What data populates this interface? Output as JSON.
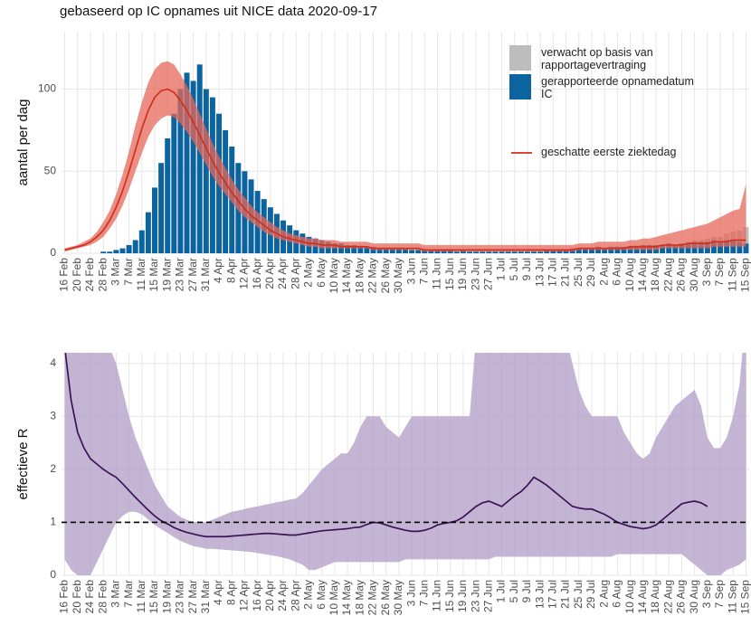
{
  "chart_data": [
    {
      "type": "bar",
      "title": "gebaseerd op IC opnames uit NICE data 2020-09-17",
      "y_label": "aantal per dag",
      "categories": [
        "16 Feb",
        null,
        "20 Feb",
        null,
        "24 Feb",
        null,
        "28 Feb",
        null,
        "3 Mar",
        null,
        "7 Mar",
        null,
        "11 Mar",
        null,
        "15 Mar",
        null,
        "19 Mar",
        null,
        "23 Mar",
        null,
        "27 Mar",
        null,
        "31 Mar",
        null,
        "4 Apr",
        null,
        "8 Apr",
        null,
        "12 Apr",
        null,
        "16 Apr",
        null,
        "20 Apr",
        null,
        "24 Apr",
        null,
        "28 Apr",
        null,
        "2 May",
        null,
        "6 May",
        null,
        "10 May",
        null,
        "14 May",
        null,
        "18 May",
        null,
        "22 May",
        null,
        "26 May",
        null,
        "30 May",
        null,
        "3 Jun",
        null,
        "7 Jun",
        null,
        "11 Jun",
        null,
        "15 Jun",
        null,
        "19 Jun",
        null,
        "23 Jun",
        null,
        "27 Jun",
        null,
        "1 Jul",
        null,
        "5 Jul",
        null,
        "9 Jul",
        null,
        "13 Jul",
        null,
        "17 Jul",
        null,
        "21 Jul",
        null,
        "25 Jul",
        null,
        "29 Jul",
        null,
        "2 Aug",
        null,
        "6 Aug",
        null,
        "10 Aug",
        null,
        "14 Aug",
        null,
        "18 Aug",
        null,
        "22 Aug",
        null,
        "26 Aug",
        null,
        "30 Aug",
        null,
        "3 Sep",
        null,
        "7 Sep",
        null,
        "11 Sep",
        null,
        "15 Sep"
      ],
      "ylim": [
        0,
        135
      ],
      "yticks": [
        0,
        50,
        100
      ],
      "grid": true,
      "series": [
        {
          "name": "verwacht op basis van rapportagevertraging",
          "color": "#bdbdbd",
          "values": [
            0,
            0,
            0,
            0,
            0,
            0,
            0,
            0,
            0,
            0,
            0,
            0,
            0,
            0,
            0,
            0,
            0,
            0,
            0,
            0,
            0,
            0,
            0,
            0,
            0,
            0,
            0,
            0,
            0,
            0,
            0,
            0,
            0,
            0,
            0,
            0,
            0,
            0,
            0,
            0,
            0,
            0,
            0,
            0,
            0,
            0,
            0,
            0,
            0,
            0,
            0,
            0,
            0,
            0,
            0,
            0,
            0,
            0,
            0,
            0,
            0,
            0,
            0,
            0,
            0,
            0,
            0,
            0,
            0,
            0,
            0,
            0,
            0,
            0,
            0,
            0,
            0,
            0,
            0,
            0,
            0,
            0,
            0,
            0,
            0,
            0,
            0,
            0,
            0,
            0,
            0,
            0,
            0,
            0,
            0,
            0,
            0,
            1,
            1,
            1,
            2,
            2,
            3,
            4,
            5,
            7,
            10
          ]
        },
        {
          "name": "gerapporteerde opnamedatum IC",
          "color": "#0b64a0",
          "values": [
            0,
            0,
            0,
            0,
            0,
            0,
            1,
            1,
            2,
            3,
            5,
            8,
            14,
            25,
            40,
            55,
            70,
            85,
            100,
            110,
            105,
            115,
            100,
            95,
            85,
            75,
            65,
            55,
            50,
            45,
            38,
            33,
            28,
            24,
            20,
            17,
            14,
            12,
            10,
            9,
            8,
            7,
            6,
            6,
            5,
            5,
            4,
            4,
            4,
            3,
            3,
            3,
            3,
            3,
            2,
            2,
            2,
            2,
            2,
            2,
            2,
            1,
            2,
            1,
            1,
            1,
            1,
            1,
            1,
            1,
            1,
            1,
            1,
            1,
            1,
            2,
            2,
            2,
            2,
            3,
            3,
            3,
            3,
            4,
            3,
            4,
            4,
            4,
            4,
            4,
            5,
            5,
            5,
            5,
            6,
            5,
            6,
            6,
            7,
            7,
            7,
            8,
            7,
            8,
            8,
            7,
            6
          ]
        },
        {
          "name": "geschatte eerste ziektedag",
          "type": "line",
          "color": "#d0301e",
          "band_color": "#e5685b",
          "values": [
            2,
            3,
            4,
            5,
            7,
            10,
            14,
            20,
            28,
            38,
            50,
            63,
            76,
            87,
            95,
            99,
            100,
            98,
            93,
            87,
            80,
            72,
            64,
            56,
            49,
            43,
            37,
            32,
            27,
            23,
            20,
            17,
            14,
            12,
            10,
            9,
            8,
            7,
            6,
            6,
            5,
            5,
            5,
            4,
            4,
            4,
            4,
            4,
            3,
            3,
            3,
            3,
            3,
            3,
            3,
            3,
            2,
            2,
            2,
            2,
            2,
            2,
            2,
            2,
            2,
            2,
            2,
            2,
            2,
            2,
            2,
            2,
            2,
            2,
            2,
            2,
            2,
            2,
            2,
            2,
            3,
            3,
            3,
            3,
            3,
            3,
            3,
            3,
            4,
            4,
            4,
            4,
            4,
            5,
            5,
            5,
            5,
            6,
            6,
            6,
            6,
            7,
            7,
            7,
            8,
            8,
            8
          ],
          "lower": [
            1,
            2,
            3,
            4,
            5,
            7,
            10,
            15,
            21,
            29,
            39,
            50,
            61,
            71,
            78,
            82,
            84,
            83,
            79,
            74,
            68,
            61,
            54,
            47,
            41,
            36,
            31,
            26,
            22,
            19,
            16,
            13,
            11,
            9,
            8,
            7,
            6,
            5,
            4,
            4,
            3,
            3,
            3,
            3,
            3,
            3,
            3,
            3,
            2,
            2,
            2,
            2,
            2,
            2,
            2,
            2,
            1,
            1,
            1,
            1,
            1,
            1,
            1,
            1,
            1,
            1,
            1,
            1,
            1,
            1,
            1,
            1,
            1,
            1,
            1,
            1,
            1,
            1,
            1,
            1,
            2,
            2,
            2,
            2,
            2,
            2,
            2,
            2,
            2,
            2,
            2,
            2,
            2,
            3,
            3,
            3,
            3,
            3,
            3,
            3,
            3,
            4,
            4,
            4,
            4,
            4,
            4
          ],
          "upper": [
            3,
            4,
            5,
            7,
            9,
            13,
            19,
            26,
            36,
            48,
            62,
            78,
            92,
            104,
            112,
            116,
            117,
            115,
            109,
            102,
            94,
            85,
            76,
            67,
            59,
            52,
            45,
            39,
            34,
            29,
            25,
            22,
            19,
            16,
            14,
            12,
            11,
            10,
            9,
            9,
            8,
            8,
            8,
            7,
            7,
            7,
            7,
            7,
            6,
            6,
            6,
            6,
            6,
            6,
            6,
            6,
            5,
            5,
            5,
            5,
            5,
            5,
            5,
            5,
            5,
            5,
            5,
            5,
            5,
            5,
            5,
            5,
            5,
            5,
            5,
            5,
            5,
            5,
            5,
            5,
            6,
            6,
            6,
            7,
            7,
            7,
            7,
            7,
            8,
            8,
            9,
            9,
            10,
            11,
            12,
            13,
            14,
            15,
            16,
            17,
            18,
            20,
            22,
            24,
            26,
            27,
            42
          ]
        }
      ]
    },
    {
      "type": "line",
      "y_label": "effectieve R",
      "categories": [
        "16 Feb",
        null,
        "20 Feb",
        null,
        "24 Feb",
        null,
        "28 Feb",
        null,
        "3 Mar",
        null,
        "7 Mar",
        null,
        "11 Mar",
        null,
        "15 Mar",
        null,
        "19 Mar",
        null,
        "23 Mar",
        null,
        "27 Mar",
        null,
        "31 Mar",
        null,
        "4 Apr",
        null,
        "8 Apr",
        null,
        "12 Apr",
        null,
        "16 Apr",
        null,
        "20 Apr",
        null,
        "24 Apr",
        null,
        "28 Apr",
        null,
        "2 May",
        null,
        "6 May",
        null,
        "10 May",
        null,
        "14 May",
        null,
        "18 May",
        null,
        "22 May",
        null,
        "26 May",
        null,
        "30 May",
        null,
        "3 Jun",
        null,
        "7 Jun",
        null,
        "11 Jun",
        null,
        "15 Jun",
        null,
        "19 Jun",
        null,
        "23 Jun",
        null,
        "27 Jun",
        null,
        "1 Jul",
        null,
        "5 Jul",
        null,
        "9 Jul",
        null,
        "13 Jul",
        null,
        "17 Jul",
        null,
        "21 Jul",
        null,
        "25 Jul",
        null,
        "29 Jul",
        null,
        "2 Aug",
        null,
        "6 Aug",
        null,
        "10 Aug",
        null,
        "14 Aug",
        null,
        "18 Aug",
        null,
        "22 Aug",
        null,
        "26 Aug",
        null,
        "30 Aug",
        null,
        "3 Sep",
        null,
        "7 Sep",
        null,
        "11 Sep",
        null,
        "15 Sep"
      ],
      "ylim": [
        0,
        4.2
      ],
      "yticks": [
        0,
        1,
        2,
        3,
        4
      ],
      "grid": true,
      "reference_line": 1,
      "series": [
        {
          "color": "#3b1357",
          "band_color": "#b29cc7",
          "values": [
            4.3,
            3.3,
            2.7,
            2.4,
            2.2,
            2.1,
            2.0,
            1.92,
            1.85,
            1.73,
            1.6,
            1.47,
            1.35,
            1.23,
            1.12,
            1.03,
            0.97,
            0.9,
            0.85,
            0.81,
            0.78,
            0.75,
            0.73,
            0.73,
            0.73,
            0.73,
            0.74,
            0.75,
            0.76,
            0.77,
            0.78,
            0.79,
            0.79,
            0.78,
            0.77,
            0.76,
            0.76,
            0.78,
            0.8,
            0.82,
            0.84,
            0.85,
            0.86,
            0.87,
            0.88,
            0.9,
            0.91,
            0.96,
            1.0,
            0.99,
            0.95,
            0.91,
            0.88,
            0.85,
            0.83,
            0.83,
            0.85,
            0.89,
            0.95,
            0.98,
            1.0,
            1.03,
            1.1,
            1.2,
            1.3,
            1.37,
            1.4,
            1.35,
            1.3,
            1.4,
            1.5,
            1.58,
            1.7,
            1.85,
            1.78,
            1.7,
            1.6,
            1.5,
            1.4,
            1.3,
            1.27,
            1.25,
            1.25,
            1.2,
            1.15,
            1.08,
            1.0,
            0.96,
            0.92,
            0.9,
            0.88,
            0.9,
            0.95,
            1.05,
            1.15,
            1.25,
            1.35,
            1.38,
            1.4,
            1.37,
            1.3,
            null,
            null,
            null,
            null,
            null,
            null
          ],
          "lower": [
            0.3,
            0.1,
            0,
            0,
            0,
            0.25,
            0.5,
            0.75,
            1.0,
            1.12,
            1.2,
            1.2,
            1.15,
            1.05,
            0.95,
            0.87,
            0.8,
            0.72,
            0.65,
            0.6,
            0.55,
            0.53,
            0.5,
            0.5,
            0.49,
            0.48,
            0.47,
            0.46,
            0.45,
            0.44,
            0.42,
            0.4,
            0.38,
            0.36,
            0.33,
            0.3,
            0.25,
            0.2,
            0.1,
            0.1,
            0.15,
            0.2,
            0.25,
            0.25,
            0.25,
            0.25,
            0.25,
            0.25,
            0.25,
            0.25,
            0.25,
            0.25,
            0.25,
            0.3,
            0.3,
            0.3,
            0.3,
            0.3,
            0.3,
            0.3,
            0.3,
            0.3,
            0.3,
            0.3,
            0.3,
            0.3,
            0.3,
            0.35,
            0.35,
            0.35,
            0.35,
            0.35,
            0.35,
            0.35,
            0.35,
            0.35,
            0.35,
            0.35,
            0.35,
            0.35,
            0.35,
            0.35,
            0.35,
            0.35,
            0.35,
            0.35,
            0.4,
            0.4,
            0.4,
            0.4,
            0.4,
            0.4,
            0.4,
            0.4,
            0.4,
            0.4,
            0.4,
            0.3,
            0.2,
            0.1,
            0,
            0,
            0,
            0.1,
            0.15,
            0.2,
            0.3
          ],
          "upper": [
            6,
            6,
            6,
            6,
            5.5,
            5,
            4.6,
            4.3,
            4.0,
            3.5,
            3.0,
            2.6,
            2.3,
            2.0,
            1.7,
            1.5,
            1.3,
            1.2,
            1.1,
            1.05,
            1.0,
            1.0,
            1.0,
            1.05,
            1.1,
            1.15,
            1.2,
            1.22,
            1.25,
            1.28,
            1.3,
            1.33,
            1.35,
            1.38,
            1.4,
            1.43,
            1.45,
            1.55,
            1.7,
            1.85,
            2.0,
            2.1,
            2.2,
            2.3,
            2.3,
            2.5,
            2.8,
            3.0,
            3.0,
            3.0,
            2.8,
            2.7,
            2.6,
            2.8,
            3.0,
            3.0,
            3.0,
            3.0,
            3.0,
            3.0,
            3.0,
            3.0,
            3.0,
            3.0,
            4.5,
            4.5,
            4.5,
            4.5,
            4.5,
            4.5,
            4.5,
            4.5,
            4.5,
            4.5,
            4.5,
            4.5,
            4.5,
            4.5,
            4.5,
            4.0,
            3.5,
            3.2,
            3.0,
            3.0,
            3.0,
            3.0,
            3.0,
            2.7,
            2.5,
            2.3,
            2.2,
            2.3,
            2.6,
            2.8,
            3.0,
            3.2,
            3.3,
            3.4,
            3.5,
            3.2,
            2.6,
            2.4,
            2.4,
            2.6,
            3.0,
            3.6,
            5.0
          ]
        }
      ]
    }
  ]
}
